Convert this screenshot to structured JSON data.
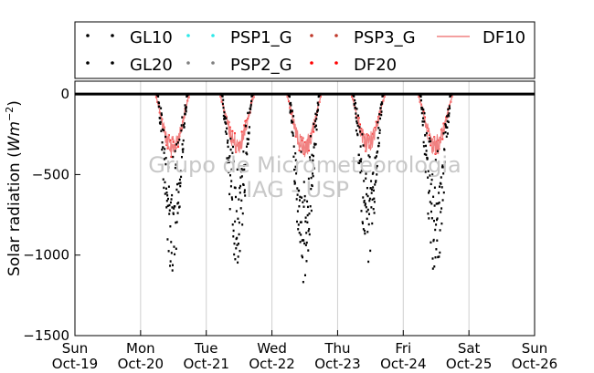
{
  "chart_data": {
    "type": "scatter",
    "ylabel": "Solar radiation (Wm^-2)",
    "ylim": [
      -1500,
      80
    ],
    "xlim": [
      0,
      7
    ],
    "yticks": [
      0,
      -500,
      -1000,
      -1500
    ],
    "xticks": [
      {
        "x": 0,
        "day": "Sun",
        "date": "Oct-19"
      },
      {
        "x": 1,
        "day": "Mon",
        "date": "Oct-20"
      },
      {
        "x": 2,
        "day": "Tue",
        "date": "Oct-21"
      },
      {
        "x": 3,
        "day": "Wed",
        "date": "Oct-22"
      },
      {
        "x": 4,
        "day": "Thu",
        "date": "Oct-23"
      },
      {
        "x": 5,
        "day": "Fri",
        "date": "Oct-24"
      },
      {
        "x": 6,
        "day": "Sat",
        "date": "Oct-25"
      },
      {
        "x": 7,
        "day": "Sun",
        "date": "Oct-26"
      }
    ],
    "grid": "vertical",
    "legend": "top",
    "watermark": [
      "Grupo de Micrometeorologia",
      "IAG - USP"
    ],
    "series": [
      {
        "name": "GL10",
        "color": "#000000",
        "marker": "dot",
        "daily_peaks": [
          -1120,
          -1070,
          -1220,
          -1060,
          -1170
        ]
      },
      {
        "name": "GL20",
        "color": "#000000",
        "marker": "dot",
        "daily_peaks": [
          -1100,
          -1050,
          -1200,
          -1040,
          -1150
        ]
      },
      {
        "name": "PSP1_G",
        "color": "#2ee8e8",
        "marker": "dot",
        "daily_peaks": [
          0,
          0,
          0,
          0,
          0
        ]
      },
      {
        "name": "PSP2_G",
        "color": "#808080",
        "marker": "dot",
        "daily_peaks": [
          0,
          0,
          0,
          0,
          0
        ]
      },
      {
        "name": "PSP3_G",
        "color": "#c0392b",
        "marker": "dot",
        "daily_peaks": [
          0,
          0,
          0,
          0,
          0
        ]
      },
      {
        "name": "DF20",
        "color": "#ff0000",
        "marker": "dot",
        "daily_peaks": [
          -390,
          -370,
          -400,
          -360,
          -380
        ]
      },
      {
        "name": "DF10",
        "color": "#f08080",
        "marker": "line",
        "daily_peaks": [
          -400,
          -380,
          -410,
          -370,
          -390
        ]
      }
    ],
    "days_with_data": [
      {
        "start": 1.22,
        "end": 1.75,
        "global_peak": -1120,
        "diffuse_peak": -400
      },
      {
        "start": 2.2,
        "end": 2.74,
        "global_peak": -1070,
        "diffuse_peak": -380
      },
      {
        "start": 3.22,
        "end": 3.76,
        "global_peak": -1220,
        "diffuse_peak": -410
      },
      {
        "start": 4.2,
        "end": 4.73,
        "global_peak": -1060,
        "diffuse_peak": -370
      },
      {
        "start": 5.22,
        "end": 5.76,
        "global_peak": -1170,
        "diffuse_peak": -390
      }
    ]
  }
}
